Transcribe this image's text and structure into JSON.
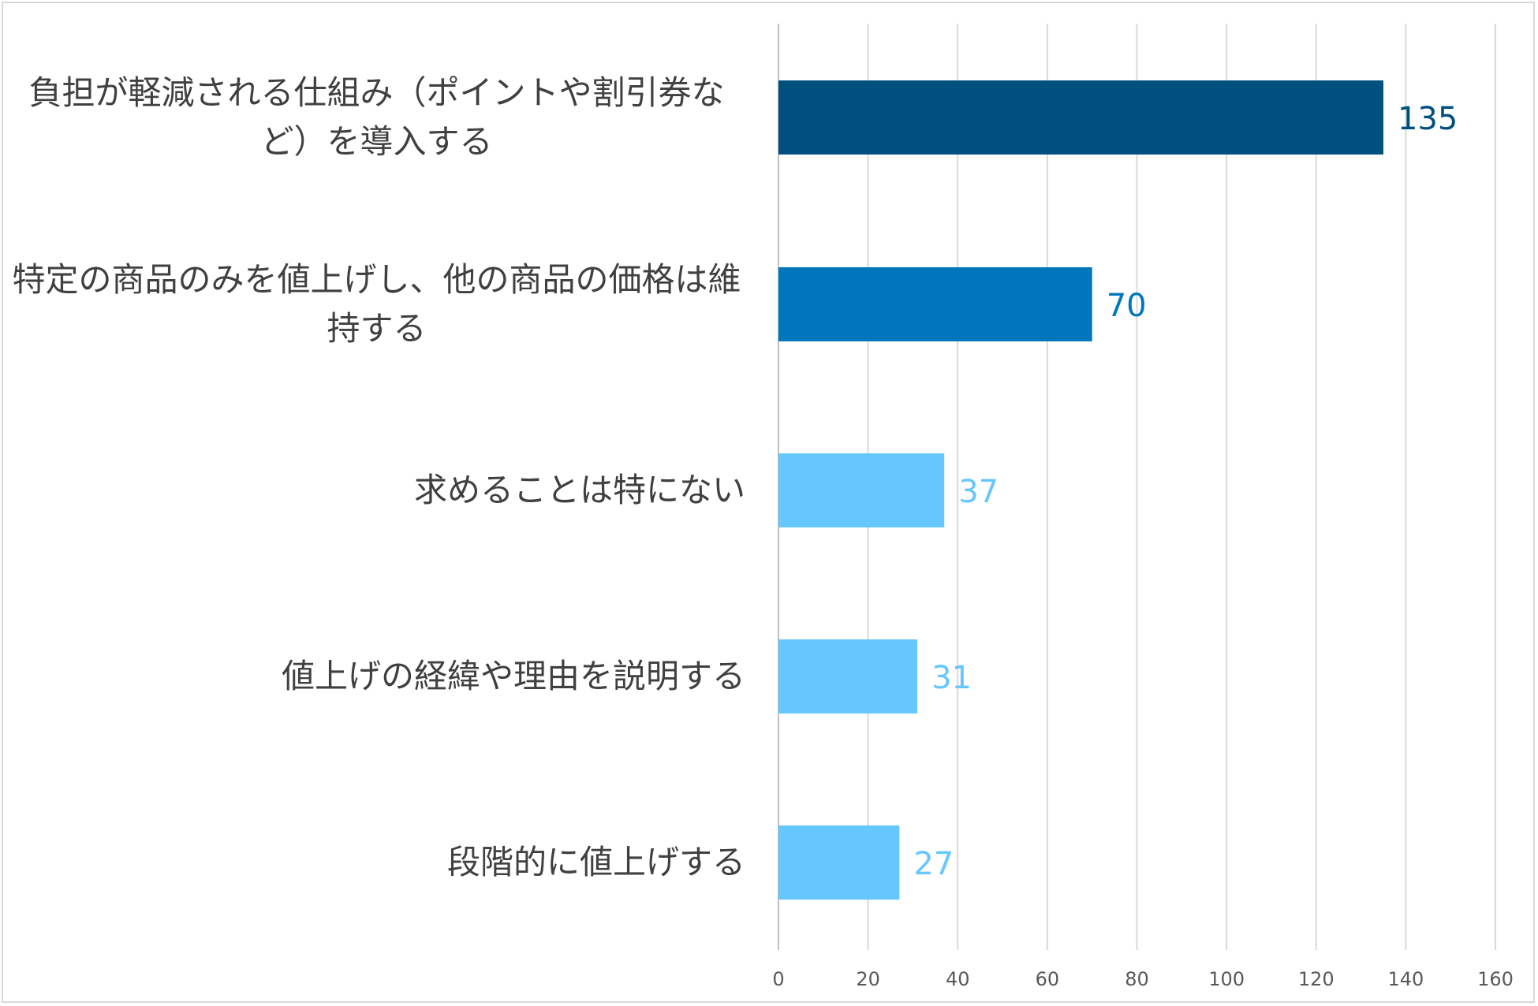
{
  "chart_data": {
    "type": "bar",
    "orientation": "horizontal",
    "categories": [
      "負担が軽減される仕組み（ポイントや割引券など）を導入する",
      "特定の商品のみを値上げし、他の商品の価格は維持する",
      "求めることは特にない",
      "値上げの経緯や理由を説明する",
      "段階的に値上げする"
    ],
    "values": [
      135,
      70,
      37,
      31,
      27
    ],
    "bar_colors": [
      "#00507F",
      "#0077BD",
      "#66C7FF",
      "#66C7FF",
      "#66C7FF"
    ],
    "xlim": [
      0,
      160
    ],
    "xticks": [
      "0",
      "20",
      "40",
      "60",
      "80",
      "100",
      "120",
      "140",
      "160"
    ],
    "grid": "vertical",
    "title": "",
    "xlabel": "",
    "ylabel": ""
  }
}
